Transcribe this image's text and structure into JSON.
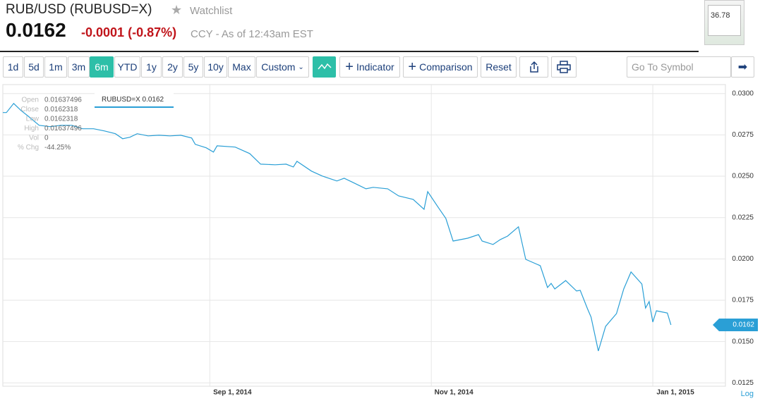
{
  "header": {
    "title": "RUB/USD (RUBUSD=X)",
    "watchlist": "Watchlist",
    "price": "0.0162",
    "change": "-0.0001",
    "change_pct": "(-0.87%)",
    "meta": "CCY - As of 12:43am EST",
    "thumbnail_value": "36.78"
  },
  "toolbar": {
    "ranges": [
      "1d",
      "5d",
      "1m",
      "3m",
      "6m",
      "YTD",
      "1y",
      "2y",
      "5y",
      "10y",
      "Max",
      "Custom"
    ],
    "indicator": "Indicator",
    "comparison": "Comparison",
    "reset": "Reset",
    "symbol_placeholder": "Go To Symbol"
  },
  "info_panel": {
    "rows": [
      {
        "label": "Open",
        "value": "0.01637496"
      },
      {
        "label": "Close",
        "value": "0.0162318"
      },
      {
        "label": "Low",
        "value": "0.0162318"
      },
      {
        "label": "High",
        "value": "0.01637496"
      },
      {
        "label": "Vol",
        "value": "0"
      },
      {
        "label": "% Chg",
        "value": "-44.25%"
      }
    ]
  },
  "chart_data": {
    "type": "line",
    "x": [
      "2014-07-06",
      "2014-07-07",
      "2014-07-09",
      "2014-07-11",
      "2014-07-13",
      "2014-07-16",
      "2014-07-19",
      "2014-07-22",
      "2014-07-25",
      "2014-07-28",
      "2014-07-31",
      "2014-08-03",
      "2014-08-06",
      "2014-08-08",
      "2014-08-10",
      "2014-08-12",
      "2014-08-15",
      "2014-08-18",
      "2014-08-21",
      "2014-08-24",
      "2014-08-27",
      "2014-08-28",
      "2014-08-31",
      "2014-09-02",
      "2014-09-03",
      "2014-09-08",
      "2014-09-12",
      "2014-09-15",
      "2014-09-19",
      "2014-09-22",
      "2014-09-24",
      "2014-09-25",
      "2014-09-29",
      "2014-10-02",
      "2014-10-06",
      "2014-10-08",
      "2014-10-10",
      "2014-10-14",
      "2014-10-16",
      "2014-10-20",
      "2014-10-23",
      "2014-10-27",
      "2014-10-30",
      "2014-10-31",
      "2014-11-03",
      "2014-11-05",
      "2014-11-07",
      "2014-11-11",
      "2014-11-14",
      "2014-11-15",
      "2014-11-18",
      "2014-11-20",
      "2014-11-22",
      "2014-11-25",
      "2014-11-27",
      "2014-12-01",
      "2014-12-03",
      "2014-12-04",
      "2014-12-05",
      "2014-12-08",
      "2014-12-11",
      "2014-12-12",
      "2014-12-14",
      "2014-12-15",
      "2014-12-17",
      "2014-12-19",
      "2014-12-22",
      "2014-12-24",
      "2014-12-26",
      "2014-12-29",
      "2014-12-30",
      "2014-12-31",
      "2015-01-01",
      "2015-01-02",
      "2015-01-05",
      "2015-01-06"
    ],
    "series": [
      {
        "name": "RUBUSD=X",
        "color": "#2a9fd6",
        "values": [
          0.02885,
          0.02885,
          0.0294,
          0.02898,
          0.02863,
          0.02808,
          0.028,
          0.02808,
          0.02808,
          0.02787,
          0.02787,
          0.02774,
          0.02757,
          0.02727,
          0.02736,
          0.02757,
          0.02744,
          0.02748,
          0.02744,
          0.02748,
          0.02731,
          0.02693,
          0.02672,
          0.02646,
          0.02684,
          0.02676,
          0.02637,
          0.02573,
          0.02569,
          0.02573,
          0.02556,
          0.0259,
          0.02531,
          0.02501,
          0.02471,
          0.02488,
          0.02467,
          0.02424,
          0.02433,
          0.02424,
          0.02381,
          0.0236,
          0.023,
          0.02407,
          0.02309,
          0.02245,
          0.02108,
          0.02125,
          0.02147,
          0.02108,
          0.02087,
          0.02117,
          0.02138,
          0.02194,
          0.01997,
          0.01959,
          0.01827,
          0.01852,
          0.01818,
          0.01869,
          0.01806,
          0.0181,
          0.01699,
          0.01648,
          0.01443,
          0.01592,
          0.01669,
          0.01818,
          0.01921,
          0.01848,
          0.01703,
          0.01742,
          0.01618,
          0.01686,
          0.01673,
          0.01601
        ]
      }
    ],
    "xlim": [
      "2014-07-06",
      "2015-01-21"
    ],
    "xticks": [
      {
        "value": "2014-09-01",
        "label": "Sep 1, 2014"
      },
      {
        "value": "2014-11-01",
        "label": "Nov 1, 2014"
      },
      {
        "value": "2015-01-01",
        "label": "Jan 1, 2015"
      }
    ],
    "ylim": [
      0.0123,
      0.0305
    ],
    "yticks": [
      {
        "value": 0.0125,
        "label": "0.0125"
      },
      {
        "value": 0.015,
        "label": "0.0150"
      },
      {
        "value": 0.0175,
        "label": "0.0175"
      },
      {
        "value": 0.02,
        "label": "0.0200"
      },
      {
        "value": 0.0225,
        "label": "0.0225"
      },
      {
        "value": 0.025,
        "label": "0.0250"
      },
      {
        "value": 0.0275,
        "label": "0.0275"
      },
      {
        "value": 0.03,
        "label": "0.0300"
      }
    ],
    "grid": true,
    "scale_label": "Log"
  }
}
